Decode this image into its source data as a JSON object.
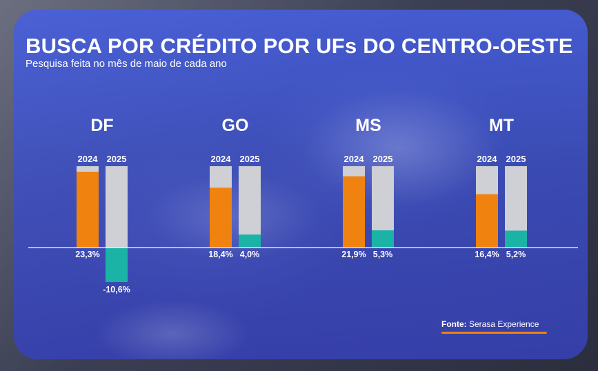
{
  "header": {
    "title": "BUSCA POR CRÉDITO POR UFs DO CENTRO-OESTE",
    "subtitle": "Pesquisa feita no mês de maio de cada ano"
  },
  "source": {
    "label": "Fonte:",
    "text": "Serasa Experience"
  },
  "colors": {
    "panel": "#4a5fdc",
    "bar_2024": "#f0820f",
    "bar_2025": "#1ab3a6",
    "bar_background": "#cfcfd6",
    "text": "#ffffff"
  },
  "chart_data": {
    "type": "bar",
    "title": "BUSCA POR CRÉDITO POR UFs DO CENTRO-OESTE",
    "subtitle": "Pesquisa feita no mês de maio de cada ano",
    "unit": "%",
    "groups": [
      "DF",
      "GO",
      "MS",
      "MT"
    ],
    "series": [
      {
        "name": "2024",
        "values": [
          23.3,
          18.4,
          21.9,
          16.4
        ],
        "labels": [
          "23,3%",
          "18,4%",
          "21,9%",
          "16,4%"
        ]
      },
      {
        "name": "2025",
        "values": [
          -10.6,
          4.0,
          5.3,
          5.2
        ],
        "labels": [
          "-10,6%",
          "4,0%",
          "5,3%",
          "5,2%"
        ]
      }
    ],
    "grid": false,
    "legend": "year labels above each bar"
  }
}
